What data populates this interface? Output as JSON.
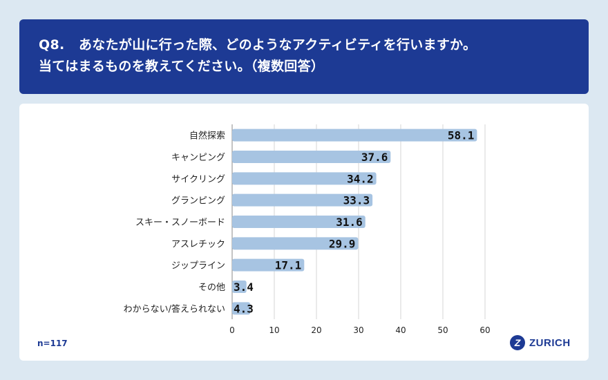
{
  "header": {
    "question_no": "Q8.",
    "line1": "あなたが山に行った際、どのようなアクティビティを行いますか。",
    "line2": "当てはまるものを教えてください。（複数回答）"
  },
  "footer": {
    "n": "n=117",
    "logo_mark": "Z",
    "logo_text": "ZURICH"
  },
  "colors": {
    "header_bg": "#1d3a94",
    "bar": "#a7c4e2",
    "page_bg": "#dce8f2"
  },
  "chart_data": {
    "type": "bar",
    "orientation": "horizontal",
    "categories": [
      "自然探索",
      "キャンピング",
      "サイクリング",
      "グランピング",
      "スキー・スノーボード",
      "アスレチック",
      "ジップライン",
      "その他",
      "わからない/答えられない"
    ],
    "values": [
      58.1,
      37.6,
      34.2,
      33.3,
      31.6,
      29.9,
      17.1,
      3.4,
      4.3
    ],
    "value_labels": [
      "58.1",
      "37.6",
      "34.2",
      "33.3",
      "31.6",
      "29.9",
      "17.1",
      "3.4",
      "4.3"
    ],
    "xlim": [
      0,
      60
    ],
    "xticks": [
      0,
      10,
      20,
      30,
      40,
      50,
      60
    ],
    "grid": true,
    "legend": "none"
  }
}
